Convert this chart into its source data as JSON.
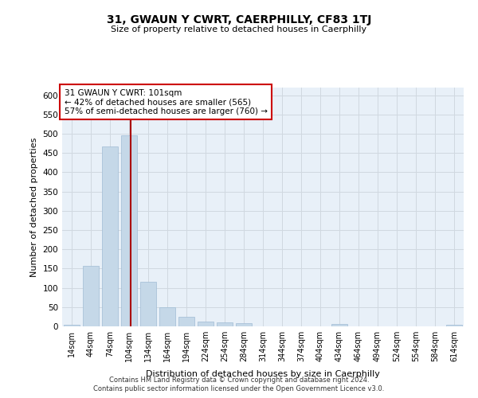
{
  "title": "31, GWAUN Y CWRT, CAERPHILLY, CF83 1TJ",
  "subtitle": "Size of property relative to detached houses in Caerphilly",
  "xlabel": "Distribution of detached houses by size in Caerphilly",
  "ylabel": "Number of detached properties",
  "footer_line1": "Contains HM Land Registry data © Crown copyright and database right 2024.",
  "footer_line2": "Contains public sector information licensed under the Open Government Licence v3.0.",
  "categories": [
    "14sqm",
    "44sqm",
    "74sqm",
    "104sqm",
    "134sqm",
    "164sqm",
    "194sqm",
    "224sqm",
    "254sqm",
    "284sqm",
    "314sqm",
    "344sqm",
    "374sqm",
    "404sqm",
    "434sqm",
    "464sqm",
    "494sqm",
    "524sqm",
    "554sqm",
    "584sqm",
    "614sqm"
  ],
  "values": [
    5,
    157,
    468,
    497,
    116,
    50,
    25,
    13,
    10,
    8,
    0,
    0,
    0,
    0,
    6,
    0,
    0,
    0,
    0,
    0,
    5
  ],
  "bar_color": "#c5d8e8",
  "bar_edge_color": "#a0bcd4",
  "grid_color": "#d0d8e0",
  "background_color": "#e8f0f8",
  "vline_color": "#aa0000",
  "annotation_text": "31 GWAUN Y CWRT: 101sqm\n← 42% of detached houses are smaller (565)\n57% of semi-detached houses are larger (760) →",
  "annotation_box_facecolor": "#ffffff",
  "annotation_box_edgecolor": "#cc0000",
  "ylim": [
    0,
    620
  ],
  "yticks": [
    0,
    50,
    100,
    150,
    200,
    250,
    300,
    350,
    400,
    450,
    500,
    550,
    600
  ]
}
